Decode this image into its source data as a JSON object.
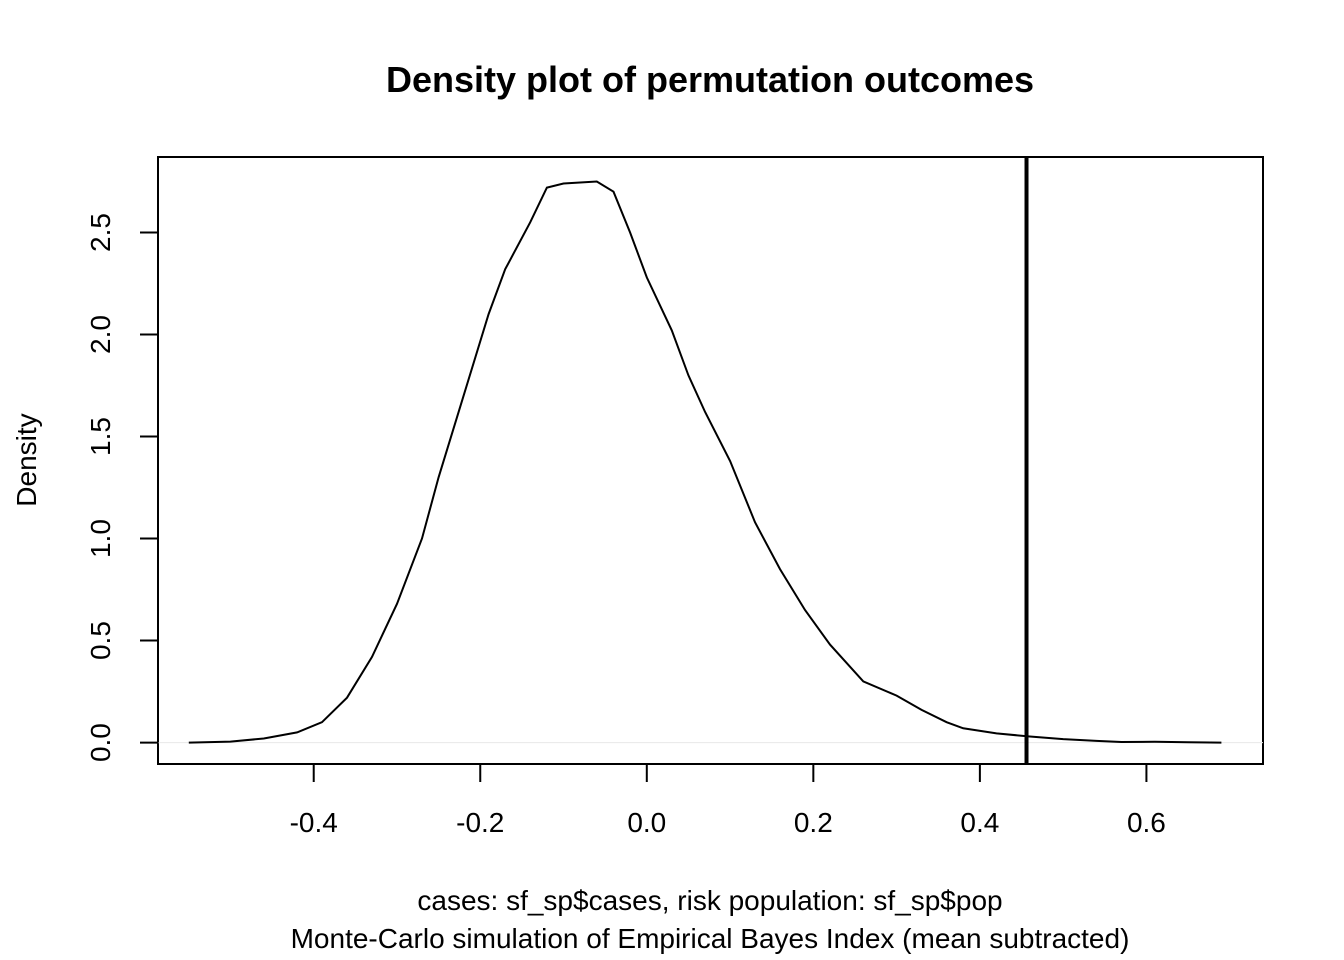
{
  "chart_data": {
    "type": "line",
    "title": "Density plot of permutation outcomes",
    "xlabel_lines": [
      "cases: sf_sp$cases, risk population: sf_sp$pop",
      "Monte-Carlo simulation of Empirical Bayes Index (mean subtracted)"
    ],
    "ylabel": "Density",
    "xlim": [
      -0.587,
      0.74
    ],
    "ylim": [
      -0.105,
      2.87
    ],
    "x_ticks": [
      -0.4,
      -0.2,
      0.0,
      0.2,
      0.4,
      0.6
    ],
    "x_tick_labels": [
      "-0.4",
      "-0.2",
      "0.0",
      "0.2",
      "0.4",
      "0.6"
    ],
    "y_ticks": [
      0.0,
      0.5,
      1.0,
      1.5,
      2.0,
      2.5
    ],
    "y_tick_labels": [
      "0.0",
      "0.5",
      "1.0",
      "1.5",
      "2.0",
      "2.5"
    ],
    "grid": false,
    "legend": "none",
    "zero_line": true,
    "observed_line": {
      "x": 0.456,
      "color": "#000000"
    },
    "series": [
      {
        "color": "#000000",
        "points": [
          [
            -0.55,
            0.0
          ],
          [
            -0.5,
            0.005
          ],
          [
            -0.46,
            0.02
          ],
          [
            -0.42,
            0.05
          ],
          [
            -0.39,
            0.1
          ],
          [
            -0.36,
            0.22
          ],
          [
            -0.33,
            0.42
          ],
          [
            -0.3,
            0.68
          ],
          [
            -0.27,
            1.0
          ],
          [
            -0.25,
            1.3
          ],
          [
            -0.22,
            1.7
          ],
          [
            -0.19,
            2.1
          ],
          [
            -0.17,
            2.32
          ],
          [
            -0.14,
            2.55
          ],
          [
            -0.12,
            2.72
          ],
          [
            -0.1,
            2.74
          ],
          [
            -0.08,
            2.745
          ],
          [
            -0.06,
            2.75
          ],
          [
            -0.04,
            2.7
          ],
          [
            -0.02,
            2.5
          ],
          [
            0.0,
            2.28
          ],
          [
            0.03,
            2.02
          ],
          [
            0.05,
            1.8
          ],
          [
            0.07,
            1.62
          ],
          [
            0.1,
            1.38
          ],
          [
            0.13,
            1.08
          ],
          [
            0.16,
            0.85
          ],
          [
            0.19,
            0.65
          ],
          [
            0.22,
            0.48
          ],
          [
            0.26,
            0.3
          ],
          [
            0.3,
            0.23
          ],
          [
            0.33,
            0.16
          ],
          [
            0.36,
            0.1
          ],
          [
            0.38,
            0.07
          ],
          [
            0.42,
            0.045
          ],
          [
            0.46,
            0.03
          ],
          [
            0.5,
            0.017
          ],
          [
            0.54,
            0.008
          ],
          [
            0.57,
            0.003
          ],
          [
            0.61,
            0.004
          ],
          [
            0.65,
            0.002
          ],
          [
            0.69,
            0.0
          ]
        ]
      }
    ]
  }
}
